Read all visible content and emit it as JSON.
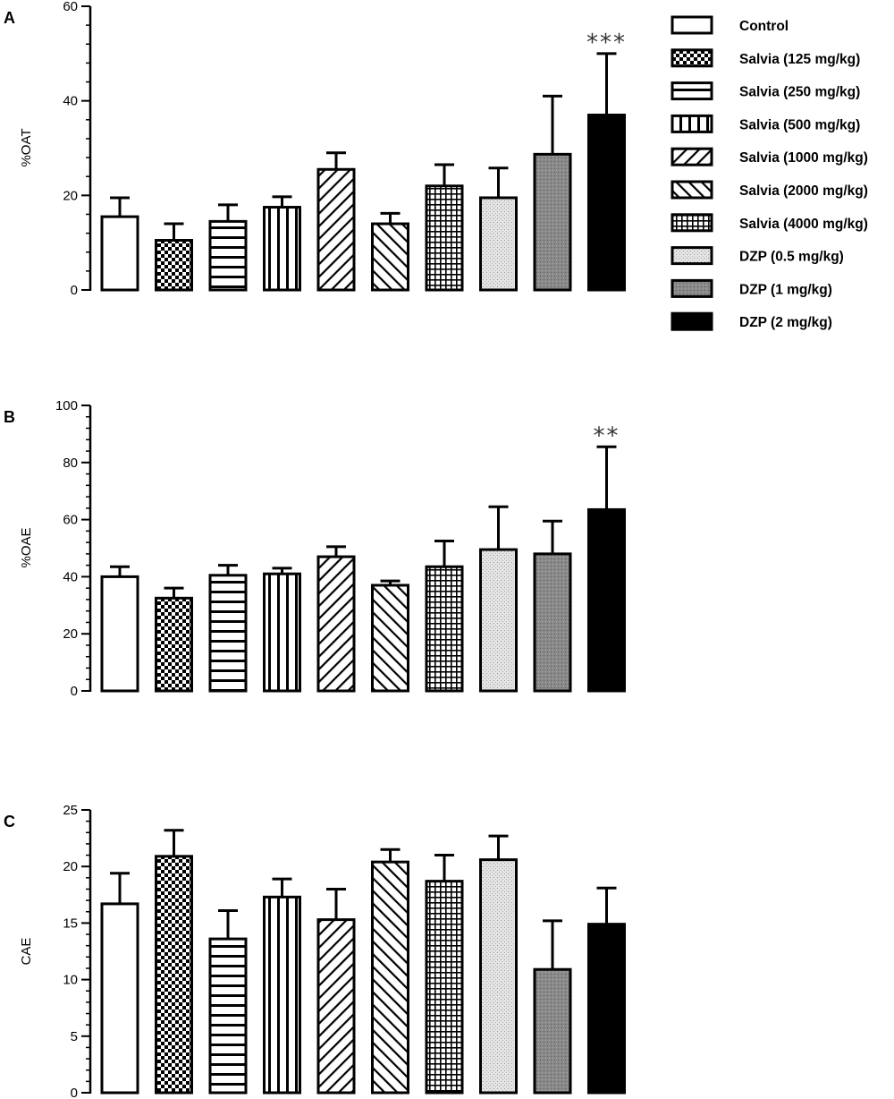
{
  "legend": [
    {
      "label": "Control",
      "pattern": "white"
    },
    {
      "label": "Salvia (125 mg/kg)",
      "pattern": "checker"
    },
    {
      "label": "Salvia (250 mg/kg)",
      "pattern": "hstripes"
    },
    {
      "label": "Salvia (500 mg/kg)",
      "pattern": "vstripes"
    },
    {
      "label": "Salvia (1000 mg/kg)",
      "pattern": "diagfwd"
    },
    {
      "label": "Salvia (2000 mg/kg)",
      "pattern": "diagback"
    },
    {
      "label": "Salvia (4000 mg/kg)",
      "pattern": "grid"
    },
    {
      "label": "DZP (0.5 mg/kg)",
      "pattern": "lightdots"
    },
    {
      "label": "DZP (1 mg/kg)",
      "pattern": "darkgray"
    },
    {
      "label": "DZP (2 mg/kg)",
      "pattern": "black"
    }
  ],
  "chart_data": [
    {
      "type": "bar",
      "panel": "A",
      "ylabel": "%OAT",
      "ylim": [
        0,
        60
      ],
      "yticks": [
        0,
        20,
        40,
        60
      ],
      "categories": [
        "Control",
        "Salvia (125 mg/kg)",
        "Salvia (250 mg/kg)",
        "Salvia (500 mg/kg)",
        "Salvia (1000 mg/kg)",
        "Salvia (2000 mg/kg)",
        "Salvia (4000 mg/kg)",
        "DZP (0.5 mg/kg)",
        "DZP (1 mg/kg)",
        "DZP (2 mg/kg)"
      ],
      "values": [
        15.5,
        10.5,
        14.5,
        17.5,
        25.5,
        14,
        22,
        19.5,
        28.7,
        37
      ],
      "errors": [
        4,
        3.5,
        3.5,
        2.2,
        3.5,
        2.2,
        4.5,
        6.3,
        12.3,
        13
      ],
      "annotations": [
        {
          "category": "DZP (2 mg/kg)",
          "text": "***"
        }
      ]
    },
    {
      "type": "bar",
      "panel": "B",
      "ylabel": "%OAE",
      "ylim": [
        0,
        100
      ],
      "yticks": [
        0,
        20,
        40,
        60,
        80,
        100
      ],
      "categories": [
        "Control",
        "Salvia (125 mg/kg)",
        "Salvia (250 mg/kg)",
        "Salvia (500 mg/kg)",
        "Salvia (1000 mg/kg)",
        "Salvia (2000 mg/kg)",
        "Salvia (4000 mg/kg)",
        "DZP (0.5 mg/kg)",
        "DZP (1 mg/kg)",
        "DZP (2 mg/kg)"
      ],
      "values": [
        40,
        32.5,
        40.5,
        41,
        47,
        37,
        43.5,
        49.5,
        48,
        63.5
      ],
      "errors": [
        3.5,
        3.5,
        3.5,
        2,
        3.5,
        1.5,
        9,
        15,
        11.5,
        22
      ],
      "annotations": [
        {
          "category": "DZP (2 mg/kg)",
          "text": "**"
        }
      ]
    },
    {
      "type": "bar",
      "panel": "C",
      "ylabel": "CAE",
      "ylim": [
        0,
        25
      ],
      "yticks": [
        0,
        5,
        10,
        15,
        20,
        25
      ],
      "categories": [
        "Control",
        "Salvia (125 mg/kg)",
        "Salvia (250 mg/kg)",
        "Salvia (500 mg/kg)",
        "Salvia (1000 mg/kg)",
        "Salvia (2000 mg/kg)",
        "Salvia (4000 mg/kg)",
        "DZP (0.5 mg/kg)",
        "DZP (1 mg/kg)",
        "DZP (2 mg/kg)"
      ],
      "values": [
        16.7,
        20.9,
        13.6,
        17.3,
        15.3,
        20.4,
        18.7,
        20.6,
        10.9,
        14.9
      ],
      "errors": [
        2.7,
        2.3,
        2.5,
        1.6,
        2.7,
        1.1,
        2.3,
        2.1,
        4.3,
        3.2
      ],
      "annotations": []
    }
  ]
}
